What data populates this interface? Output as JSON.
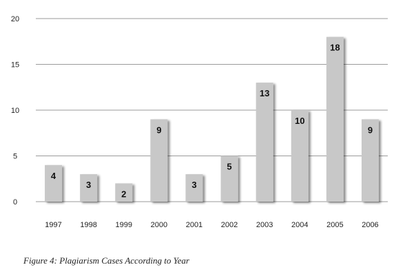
{
  "chart_data": {
    "type": "bar",
    "title": "",
    "xlabel": "",
    "ylabel": "",
    "categories": [
      "1997",
      "1998",
      "1999",
      "2000",
      "2001",
      "2002",
      "2003",
      "2004",
      "2005",
      "2006"
    ],
    "values": [
      4,
      3,
      2,
      9,
      3,
      5,
      13,
      10,
      18,
      9
    ],
    "ylim": [
      0,
      20
    ],
    "yticks": [
      0,
      5,
      10,
      15,
      20
    ],
    "grid": true,
    "legend": "none",
    "bar_color": "#c8c8c8",
    "grid_color": "#9a9a9a",
    "data_labels": true
  },
  "caption": "Figure 4: Plagiarism Cases According to Year"
}
